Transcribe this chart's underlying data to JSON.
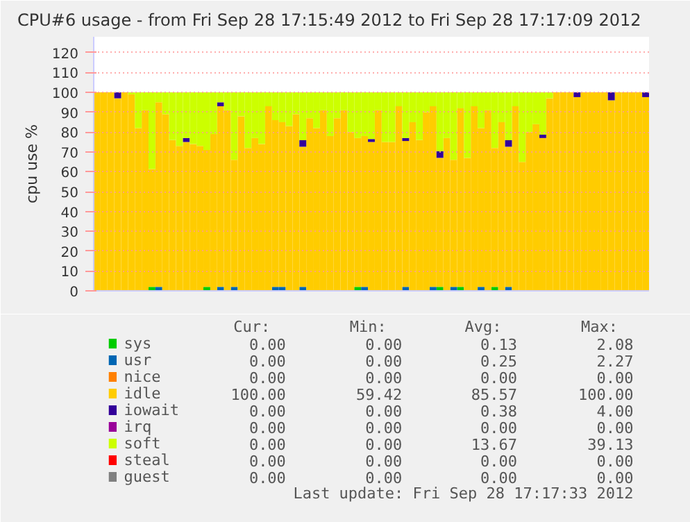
{
  "chart_data": {
    "type": "bar",
    "stacked": true,
    "title": "CPU#6 usage - from Fri Sep 28 17:15:49 2012 to Fri Sep 28 17:17:09 2012",
    "ylabel": "cpu use %",
    "categories": [
      null,
      null,
      null,
      null,
      null,
      null,
      null,
      null,
      null,
      null,
      null,
      null,
      null,
      null,
      null,
      null,
      null,
      null,
      null,
      null,
      null,
      null,
      null,
      null,
      null,
      null,
      null,
      null,
      null,
      null,
      null,
      null,
      null,
      null,
      null,
      null,
      null,
      null,
      null,
      null,
      null,
      null,
      null,
      null,
      null,
      null,
      null,
      null,
      null,
      null,
      null,
      null,
      null,
      null,
      null,
      null,
      null,
      null,
      null,
      null,
      null,
      null,
      null,
      null,
      null,
      null,
      null,
      null,
      null,
      null,
      null,
      null,
      null,
      null,
      null,
      null,
      null,
      null,
      null,
      null,
      null
    ],
    "ylim": [
      0,
      128
    ],
    "yticks": [
      0,
      10,
      20,
      30,
      40,
      50,
      60,
      70,
      80,
      90,
      100,
      110,
      120
    ],
    "grid": "y",
    "legend": "bottom",
    "series": [
      {
        "name": "sys",
        "color": "#00cc00",
        "values": [
          0,
          0,
          0,
          0,
          0,
          0,
          0,
          0,
          2,
          0,
          0,
          0,
          0,
          0,
          0,
          0,
          2,
          0,
          0,
          0,
          0,
          0,
          0,
          0,
          0,
          0,
          0,
          0,
          0,
          0,
          0,
          0,
          0,
          0,
          0,
          0,
          0,
          0,
          2,
          0,
          0,
          0,
          0,
          0,
          0,
          0,
          0,
          0,
          0,
          0,
          2,
          0,
          0,
          2,
          0,
          0,
          0,
          0,
          2,
          0,
          0,
          0,
          0,
          0,
          0,
          0,
          0,
          0,
          0,
          0,
          0,
          0,
          0,
          0,
          0,
          0,
          0,
          0,
          0,
          0,
          0
        ]
      },
      {
        "name": "usr",
        "color": "#0066b3",
        "values": [
          0,
          0,
          0,
          0,
          0,
          0,
          0,
          0,
          0,
          2,
          0,
          0,
          0,
          0,
          0,
          0,
          0,
          0,
          2,
          0,
          2,
          0,
          0,
          0,
          0,
          0,
          2,
          2,
          0,
          0,
          2,
          0,
          0,
          0,
          0,
          0,
          0,
          0,
          0,
          2,
          0,
          0,
          0,
          0,
          0,
          2,
          0,
          0,
          0,
          2,
          0,
          0,
          2,
          0,
          0,
          0,
          2,
          0,
          0,
          0,
          2,
          0,
          0,
          0,
          0,
          0,
          0,
          0,
          0,
          0,
          0,
          0,
          0,
          0,
          0,
          0,
          0,
          0,
          0,
          0,
          0
        ]
      },
      {
        "name": "nice",
        "color": "#ff8000",
        "values": [
          0,
          0,
          0,
          0,
          0,
          0,
          0,
          0,
          0,
          0,
          0,
          0,
          0,
          0,
          0,
          0,
          0,
          0,
          0,
          0,
          0,
          0,
          0,
          0,
          0,
          0,
          0,
          0,
          0,
          0,
          0,
          0,
          0,
          0,
          0,
          0,
          0,
          0,
          0,
          0,
          0,
          0,
          0,
          0,
          0,
          0,
          0,
          0,
          0,
          0,
          0,
          0,
          0,
          0,
          0,
          0,
          0,
          0,
          0,
          0,
          0,
          0,
          0,
          0,
          0,
          0,
          0,
          0,
          0,
          0,
          0,
          0,
          0,
          0,
          0,
          0,
          0,
          0,
          0,
          0,
          0
        ]
      },
      {
        "name": "idle",
        "color": "#ffcc00",
        "values": [
          100,
          100,
          100,
          97,
          100,
          99,
          82,
          91,
          59.4,
          93,
          89,
          76,
          73,
          75,
          74,
          73,
          69,
          79,
          91,
          91,
          64,
          88,
          72,
          77,
          74,
          93,
          84,
          83,
          83,
          89,
          70.6,
          87,
          82,
          91,
          78,
          87,
          91,
          80,
          75,
          76,
          75,
          91,
          75,
          75,
          93,
          73.5,
          85,
          76,
          90,
          91,
          65,
          77,
          64,
          90,
          67,
          93,
          80,
          91,
          70,
          85,
          70.6,
          93,
          65,
          80,
          84,
          77,
          97,
          100,
          100,
          100,
          97.6,
          100,
          100,
          100,
          100,
          96,
          100,
          100,
          100,
          100,
          97.6
        ]
      },
      {
        "name": "iowait",
        "color": "#330099",
        "values": [
          0,
          0,
          0,
          3,
          0,
          0,
          0,
          0,
          0,
          0,
          0,
          0,
          0,
          2,
          0,
          0,
          0,
          0,
          2,
          0,
          0,
          0,
          0,
          0,
          0,
          0,
          0,
          0,
          0,
          0,
          3.3,
          0,
          0,
          0,
          0,
          0,
          0,
          0,
          0,
          0,
          1.5,
          0,
          0,
          0,
          0,
          1.5,
          0,
          0,
          0,
          0,
          3.3,
          0,
          0,
          0,
          0,
          0,
          0,
          0,
          0,
          0,
          3.3,
          0,
          0,
          0,
          0,
          1.7,
          0,
          0,
          0,
          0,
          2.4,
          0,
          0,
          0,
          0,
          4,
          0,
          0,
          0,
          0,
          2.4
        ]
      },
      {
        "name": "irq",
        "color": "#990099",
        "values": [
          0,
          0,
          0,
          0,
          0,
          0,
          0,
          0,
          0,
          0,
          0,
          0,
          0,
          0,
          0,
          0,
          0,
          0,
          0,
          0,
          0,
          0,
          0,
          0,
          0,
          0,
          0,
          0,
          0,
          0,
          0,
          0,
          0,
          0,
          0,
          0,
          0,
          0,
          0,
          0,
          0,
          0,
          0,
          0,
          0,
          0,
          0,
          0,
          0,
          0,
          0,
          0,
          0,
          0,
          0,
          0,
          0,
          0,
          0,
          0,
          0,
          0,
          0,
          0,
          0,
          0,
          0,
          0,
          0,
          0,
          0,
          0,
          0,
          0,
          0,
          0,
          0,
          0,
          0,
          0,
          0
        ]
      },
      {
        "name": "soft",
        "color": "#ccff00",
        "values": [
          0,
          0,
          0,
          0,
          0,
          1,
          18,
          9,
          38.6,
          5,
          11,
          24,
          27,
          23,
          26,
          27,
          29,
          21,
          5,
          9,
          34,
          12,
          28,
          23,
          26,
          7,
          14,
          15,
          17,
          11,
          24.1,
          13,
          18,
          9,
          22,
          13,
          9,
          20,
          23,
          22,
          23.5,
          9,
          25,
          25,
          7,
          23,
          15,
          24,
          10,
          7,
          29.7,
          23,
          34,
          8,
          33,
          7,
          18,
          9,
          28,
          15,
          24.1,
          7,
          35,
          20,
          16,
          21.3,
          3,
          0,
          0,
          0,
          0,
          0,
          0,
          0,
          0,
          0,
          0,
          0,
          0,
          0,
          0
        ]
      },
      {
        "name": "steal",
        "color": "#ff0000",
        "values": [
          0,
          0,
          0,
          0,
          0,
          0,
          0,
          0,
          0,
          0,
          0,
          0,
          0,
          0,
          0,
          0,
          0,
          0,
          0,
          0,
          0,
          0,
          0,
          0,
          0,
          0,
          0,
          0,
          0,
          0,
          0,
          0,
          0,
          0,
          0,
          0,
          0,
          0,
          0,
          0,
          0,
          0,
          0,
          0,
          0,
          0,
          0,
          0,
          0,
          0,
          0,
          0,
          0,
          0,
          0,
          0,
          0,
          0,
          0,
          0,
          0,
          0,
          0,
          0,
          0,
          0,
          0,
          0,
          0,
          0,
          0,
          0,
          0,
          0,
          0,
          0,
          0,
          0,
          0,
          0,
          0
        ]
      },
      {
        "name": "guest",
        "color": "#808080",
        "values": [
          0,
          0,
          0,
          0,
          0,
          0,
          0,
          0,
          0,
          0,
          0,
          0,
          0,
          0,
          0,
          0,
          0,
          0,
          0,
          0,
          0,
          0,
          0,
          0,
          0,
          0,
          0,
          0,
          0,
          0,
          0,
          0,
          0,
          0,
          0,
          0,
          0,
          0,
          0,
          0,
          0,
          0,
          0,
          0,
          0,
          0,
          0,
          0,
          0,
          0,
          0,
          0,
          0,
          0,
          0,
          0,
          0,
          0,
          0,
          0,
          0,
          0,
          0,
          0,
          0,
          0,
          0,
          0,
          0,
          0,
          0,
          0,
          0,
          0,
          0,
          0,
          0,
          0,
          0,
          0,
          0
        ]
      }
    ],
    "annotations": [
      "Cur:",
      "Min:",
      "Avg:",
      "Max:",
      "0.00",
      "0.00",
      "0.13",
      "2.08",
      "0.00",
      "0.00",
      "0.25",
      "2.27",
      "0.00",
      "0.00",
      "0.00",
      "0.00",
      "100.00",
      "59.42",
      "85.57",
      "100.00",
      "0.00",
      "0.00",
      "0.38",
      "4.00",
      "0.00",
      "0.00",
      "0.00",
      "0.00",
      "0.00",
      "0.00",
      "13.67",
      "39.13",
      "0.00",
      "0.00",
      "0.00",
      "0.00",
      "0.00",
      "0.00",
      "0.00",
      "0.00",
      "Last update: Fri Sep 28 17:17:33 2012"
    ]
  }
}
